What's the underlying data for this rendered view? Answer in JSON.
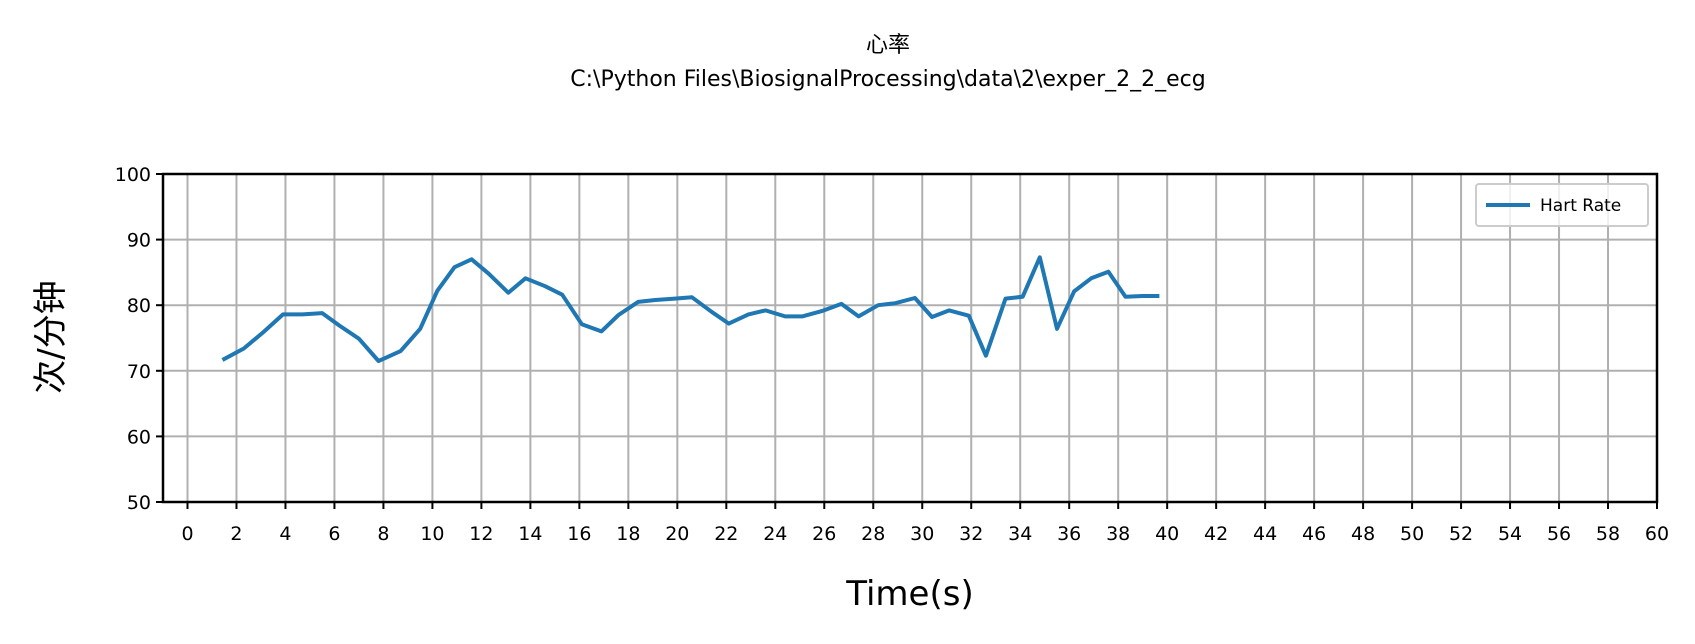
{
  "chart_data": {
    "type": "line",
    "title": "心率",
    "subtitle": "C:\\Python Files\\BiosignalProcessing\\data\\2\\exper_2_2_ecg",
    "xlabel": "Time(s)",
    "ylabel": "次/分钟",
    "xlim": [
      -1,
      60
    ],
    "ylim": [
      50,
      100
    ],
    "xticks": [
      0,
      2,
      4,
      6,
      8,
      10,
      12,
      14,
      16,
      18,
      20,
      22,
      24,
      26,
      28,
      30,
      32,
      34,
      36,
      38,
      40,
      42,
      44,
      46,
      48,
      50,
      52,
      54,
      56,
      58,
      60
    ],
    "yticks": [
      50,
      60,
      70,
      80,
      90,
      100
    ],
    "grid": true,
    "legend_position": "top-right",
    "series": [
      {
        "name": "Hart Rate",
        "color": "#1f77b4",
        "x": [
          1.5,
          2.3,
          3.1,
          3.9,
          4.7,
          5.5,
          6.2,
          7.0,
          7.8,
          8.7,
          9.5,
          10.2,
          10.9,
          11.6,
          12.3,
          13.1,
          13.8,
          14.6,
          15.3,
          16.1,
          16.9,
          17.6,
          18.4,
          19.1,
          19.9,
          20.6,
          21.4,
          22.1,
          22.9,
          23.6,
          24.4,
          25.1,
          25.9,
          26.7,
          27.4,
          28.2,
          28.9,
          29.7,
          30.4,
          31.1,
          31.9,
          32.6,
          33.4,
          34.1,
          34.8,
          35.5,
          36.2,
          36.9,
          37.6,
          38.3,
          39.0,
          39.6
        ],
        "y": [
          71.8,
          73.4,
          75.9,
          78.6,
          78.6,
          78.8,
          76.9,
          74.9,
          71.5,
          73.0,
          76.4,
          82.2,
          85.8,
          87.0,
          84.8,
          81.9,
          84.1,
          82.9,
          81.6,
          77.1,
          76.0,
          78.5,
          80.5,
          80.8,
          81.0,
          81.2,
          79.0,
          77.2,
          78.6,
          79.2,
          78.3,
          78.3,
          79.1,
          80.2,
          78.3,
          80.0,
          80.3,
          81.1,
          78.2,
          79.2,
          78.4,
          72.3,
          81.0,
          81.3,
          87.3,
          76.4,
          82.1,
          84.1,
          85.1,
          81.3,
          81.4,
          81.4
        ]
      }
    ]
  }
}
